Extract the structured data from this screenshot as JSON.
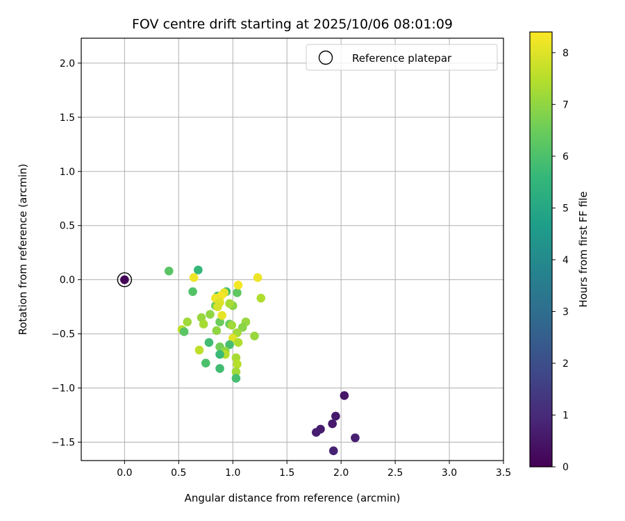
{
  "chart_data": {
    "type": "scatter",
    "title": "FOV centre drift starting at 2025/10/06 08:01:09",
    "xlabel": "Angular distance from reference (arcmin)",
    "ylabel": "Rotation from reference (arcmin)",
    "xlim": [
      -0.4,
      3.5
    ],
    "ylim": [
      -1.67,
      2.23
    ],
    "xticks": [
      0.0,
      0.5,
      1.0,
      1.5,
      2.0,
      2.5,
      3.0,
      3.5
    ],
    "xtick_labels": [
      "0.0",
      "0.5",
      "1.0",
      "1.5",
      "2.0",
      "2.5",
      "3.0",
      "3.5"
    ],
    "yticks": [
      -1.5,
      -1.0,
      -0.5,
      0.0,
      0.5,
      1.0,
      1.5,
      2.0
    ],
    "ytick_labels": [
      "−1.5",
      "−1.0",
      "−0.5",
      "0.0",
      "0.5",
      "1.0",
      "1.5",
      "2.0"
    ],
    "grid": true,
    "legend": {
      "position": "top-right",
      "entries": [
        "Reference platepar"
      ]
    },
    "reference_point": {
      "x": 0.0,
      "y": 0.0,
      "color_value": 0.0,
      "label": "Reference platepar"
    },
    "colorbar": {
      "label": "Hours from first FF file",
      "colormap": "viridis",
      "range": [
        0,
        8.4
      ],
      "ticks": [
        0,
        1,
        2,
        3,
        4,
        5,
        6,
        7,
        8
      ],
      "tick_labels": [
        "0",
        "1",
        "2",
        "3",
        "4",
        "5",
        "6",
        "7",
        "8"
      ]
    },
    "points": [
      {
        "x": 0.0,
        "y": 0.0,
        "c": 0.1
      },
      {
        "x": 2.03,
        "y": -1.07,
        "c": 0.5
      },
      {
        "x": 1.95,
        "y": -1.26,
        "c": 0.55
      },
      {
        "x": 1.92,
        "y": -1.33,
        "c": 0.6
      },
      {
        "x": 1.81,
        "y": -1.38,
        "c": 0.65
      },
      {
        "x": 1.77,
        "y": -1.41,
        "c": 0.7
      },
      {
        "x": 2.13,
        "y": -1.46,
        "c": 0.75
      },
      {
        "x": 1.93,
        "y": -1.58,
        "c": 0.8
      },
      {
        "x": 0.41,
        "y": 0.08,
        "c": 6.2
      },
      {
        "x": 0.68,
        "y": 0.09,
        "c": 5.6
      },
      {
        "x": 0.63,
        "y": -0.11,
        "c": 6.1
      },
      {
        "x": 0.94,
        "y": -0.11,
        "c": 5.8
      },
      {
        "x": 1.04,
        "y": -0.12,
        "c": 6.3
      },
      {
        "x": 0.86,
        "y": -0.15,
        "c": 6.0
      },
      {
        "x": 0.84,
        "y": -0.24,
        "c": 6.6
      },
      {
        "x": 1.0,
        "y": -0.24,
        "c": 6.9
      },
      {
        "x": 0.97,
        "y": -0.22,
        "c": 7.3
      },
      {
        "x": 0.79,
        "y": -0.32,
        "c": 7.0
      },
      {
        "x": 0.71,
        "y": -0.35,
        "c": 7.1
      },
      {
        "x": 0.58,
        "y": -0.39,
        "c": 7.2
      },
      {
        "x": 0.73,
        "y": -0.41,
        "c": 7.3
      },
      {
        "x": 0.88,
        "y": -0.39,
        "c": 6.5
      },
      {
        "x": 0.97,
        "y": -0.41,
        "c": 6.4
      },
      {
        "x": 0.99,
        "y": -0.42,
        "c": 7.2
      },
      {
        "x": 1.12,
        "y": -0.39,
        "c": 7.1
      },
      {
        "x": 1.09,
        "y": -0.44,
        "c": 6.9
      },
      {
        "x": 0.53,
        "y": -0.46,
        "c": 7.6
      },
      {
        "x": 0.55,
        "y": -0.48,
        "c": 6.2
      },
      {
        "x": 0.85,
        "y": -0.47,
        "c": 7.0
      },
      {
        "x": 1.04,
        "y": -0.49,
        "c": 7.2
      },
      {
        "x": 1.0,
        "y": -0.54,
        "c": 8.0
      },
      {
        "x": 1.2,
        "y": -0.52,
        "c": 7.1
      },
      {
        "x": 1.05,
        "y": -0.58,
        "c": 7.4
      },
      {
        "x": 0.78,
        "y": -0.58,
        "c": 5.8
      },
      {
        "x": 0.97,
        "y": -0.6,
        "c": 5.9
      },
      {
        "x": 0.88,
        "y": -0.62,
        "c": 6.6
      },
      {
        "x": 0.93,
        "y": -0.66,
        "c": 7.0
      },
      {
        "x": 0.93,
        "y": -0.69,
        "c": 7.5
      },
      {
        "x": 0.69,
        "y": -0.65,
        "c": 7.6
      },
      {
        "x": 0.88,
        "y": -0.69,
        "c": 5.7
      },
      {
        "x": 1.03,
        "y": -0.72,
        "c": 7.3
      },
      {
        "x": 1.04,
        "y": -0.78,
        "c": 7.5
      },
      {
        "x": 0.75,
        "y": -0.77,
        "c": 6.0
      },
      {
        "x": 0.88,
        "y": -0.82,
        "c": 5.8
      },
      {
        "x": 1.03,
        "y": -0.85,
        "c": 7.2
      },
      {
        "x": 1.03,
        "y": -0.91,
        "c": 5.9
      },
      {
        "x": 0.64,
        "y": 0.02,
        "c": 8.2
      },
      {
        "x": 0.92,
        "y": -0.12,
        "c": 8.1
      },
      {
        "x": 0.89,
        "y": -0.15,
        "c": 8.3
      },
      {
        "x": 0.84,
        "y": -0.17,
        "c": 8.2
      },
      {
        "x": 0.88,
        "y": -0.21,
        "c": 8.0
      },
      {
        "x": 1.05,
        "y": -0.05,
        "c": 8.3
      },
      {
        "x": 1.23,
        "y": 0.02,
        "c": 8.2
      },
      {
        "x": 1.26,
        "y": -0.17,
        "c": 7.4
      },
      {
        "x": 0.86,
        "y": -0.25,
        "c": 7.9
      },
      {
        "x": 0.9,
        "y": -0.33,
        "c": 8.1
      }
    ]
  }
}
